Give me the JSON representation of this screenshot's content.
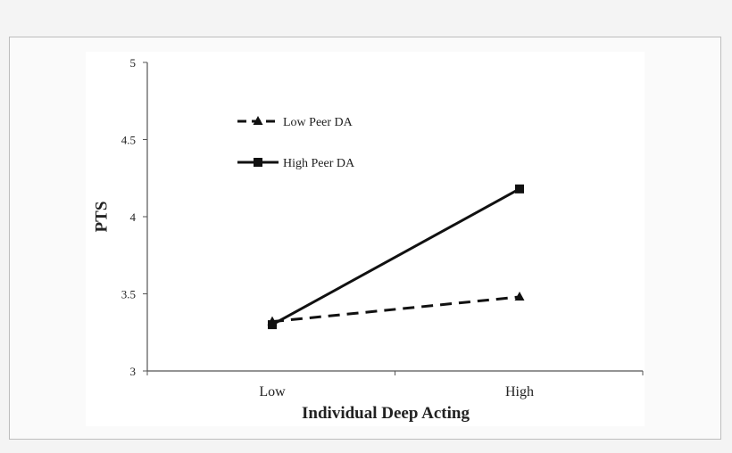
{
  "chart_data": {
    "type": "line",
    "title": "",
    "xlabel": "Individual Deep Acting",
    "ylabel": "PTS",
    "categories": [
      "Low",
      "High"
    ],
    "ylim": [
      3,
      5
    ],
    "yticks": [
      "3",
      "3.5",
      "4",
      "4.5",
      "5"
    ],
    "grid": false,
    "legend_position": "top-left",
    "series": [
      {
        "name": "Low Peer DA",
        "values": [
          3.32,
          3.48
        ],
        "line": "dashed",
        "marker": "triangle",
        "color": "#111111"
      },
      {
        "name": "High Peer DA",
        "values": [
          3.3,
          4.18
        ],
        "line": "solid",
        "marker": "square",
        "color": "#111111"
      }
    ]
  }
}
